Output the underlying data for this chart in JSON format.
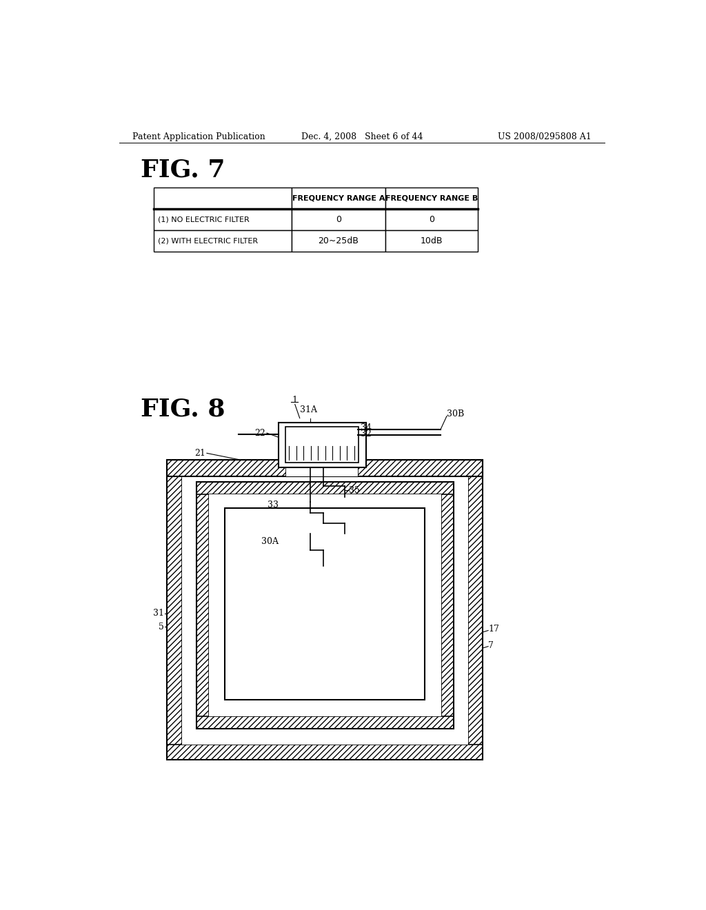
{
  "bg_color": "#ffffff",
  "page_header": {
    "left": "Patent Application Publication",
    "center": "Dec. 4, 2008   Sheet 6 of 44",
    "right": "US 2008/0295808 A1"
  },
  "fig7_label": "FIG. 7",
  "table": {
    "col_headers": [
      "",
      "FREQUENCY RANGE A",
      "FREQUENCY RANGE B"
    ],
    "rows": [
      [
        "(1) NO ELECTRIC FILTER",
        "0",
        "0"
      ],
      [
        "(2) WITH ELECTRIC FILTER",
        "20∼25dB",
        "10dB"
      ]
    ]
  },
  "fig8_label": "FIG. 8"
}
